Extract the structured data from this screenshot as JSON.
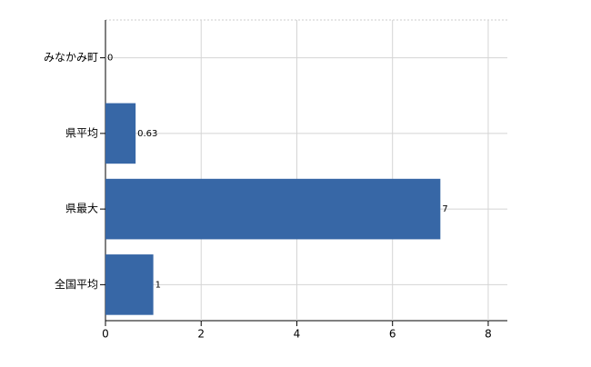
{
  "chart_data": {
    "type": "bar",
    "orientation": "horizontal",
    "categories": [
      "みなかみ町",
      "県平均",
      "県最大",
      "全国平均"
    ],
    "values": [
      0,
      0.63,
      7,
      1
    ],
    "color": "#3767a6",
    "xlim": [
      0,
      8.4
    ],
    "xticks": [
      0,
      2,
      4,
      6,
      8
    ],
    "grid": true
  }
}
